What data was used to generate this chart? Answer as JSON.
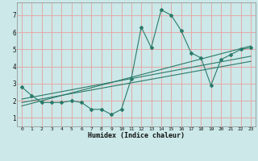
{
  "title": "",
  "xlabel": "Humidex (Indice chaleur)",
  "ylabel": "",
  "bg_color": "#cce8e8",
  "grid_color": "#e8a0a0",
  "line_color": "#2a7a6a",
  "x_ticks": [
    0,
    1,
    2,
    3,
    4,
    5,
    6,
    7,
    8,
    9,
    10,
    11,
    12,
    13,
    14,
    15,
    16,
    17,
    18,
    19,
    20,
    21,
    22,
    23
  ],
  "y_ticks": [
    1,
    2,
    3,
    4,
    5,
    6,
    7
  ],
  "xlim": [
    -0.5,
    23.5
  ],
  "ylim": [
    0.5,
    7.75
  ],
  "line1_x": [
    0,
    1,
    2,
    3,
    4,
    5,
    6,
    7,
    8,
    9,
    10,
    11,
    12,
    13,
    14,
    15,
    16,
    17,
    18,
    19,
    20,
    21,
    22,
    23
  ],
  "line1_y": [
    2.8,
    2.3,
    1.9,
    1.9,
    1.9,
    2.0,
    1.9,
    1.5,
    1.5,
    1.2,
    1.5,
    3.3,
    6.3,
    5.1,
    7.3,
    7.0,
    6.1,
    4.8,
    4.5,
    2.9,
    4.4,
    4.7,
    5.0,
    5.1
  ],
  "line2_x": [
    0,
    23
  ],
  "line2_y": [
    2.1,
    4.6
  ],
  "line3_x": [
    0,
    23
  ],
  "line3_y": [
    1.9,
    4.3
  ],
  "line4_x": [
    0,
    23
  ],
  "line4_y": [
    1.7,
    5.2
  ]
}
